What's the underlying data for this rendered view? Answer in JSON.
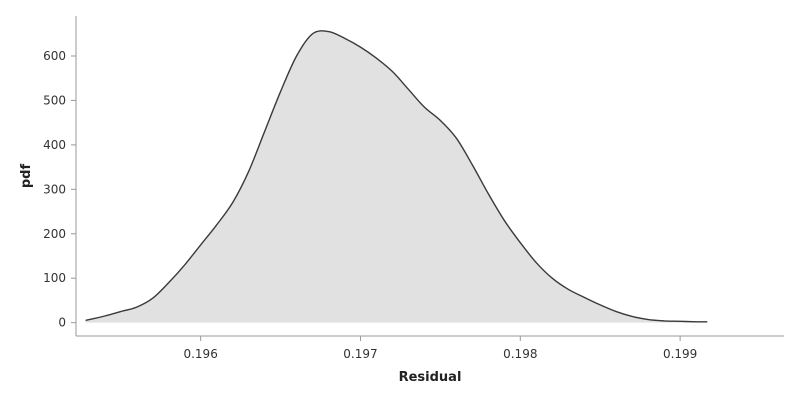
{
  "chart_data": {
    "type": "area",
    "title": "",
    "xlabel": "Residual",
    "ylabel": "pdf",
    "xlim": [
      0.19522,
      0.19965
    ],
    "ylim": [
      -30,
      690
    ],
    "grid": false,
    "legend": "none",
    "x_ticks": [
      0.196,
      0.197,
      0.198,
      0.199
    ],
    "x_tick_labels": [
      "0.196",
      "0.197",
      "0.198",
      "0.199"
    ],
    "y_ticks": [
      0,
      100,
      200,
      300,
      400,
      500,
      600
    ],
    "y_tick_labels": [
      "0",
      "100",
      "200",
      "300",
      "400",
      "500",
      "600"
    ],
    "fill_color": "#e1e1e1",
    "line_color": "#3a3a3a",
    "series": [
      {
        "x": [
          0.19528,
          0.1954,
          0.1955,
          0.1956,
          0.1957,
          0.1958,
          0.1959,
          0.196,
          0.1961,
          0.1962,
          0.1963,
          0.1964,
          0.1965,
          0.1966,
          0.1967,
          0.1968,
          0.1969,
          0.197,
          0.1971,
          0.1972,
          0.1973,
          0.1974,
          0.1975,
          0.1976,
          0.1977,
          0.1978,
          0.1979,
          0.198,
          0.1981,
          0.1982,
          0.1983,
          0.1984,
          0.1985,
          0.1986,
          0.1987,
          0.1988,
          0.1989,
          0.199,
          0.1991,
          0.19917
        ],
        "y": [
          5,
          15,
          25,
          35,
          55,
          90,
          130,
          175,
          220,
          270,
          340,
          430,
          520,
          600,
          650,
          655,
          640,
          620,
          595,
          565,
          525,
          485,
          455,
          415,
          355,
          290,
          230,
          180,
          135,
          100,
          75,
          57,
          40,
          25,
          14,
          7,
          4,
          3,
          2,
          2
        ]
      }
    ]
  }
}
